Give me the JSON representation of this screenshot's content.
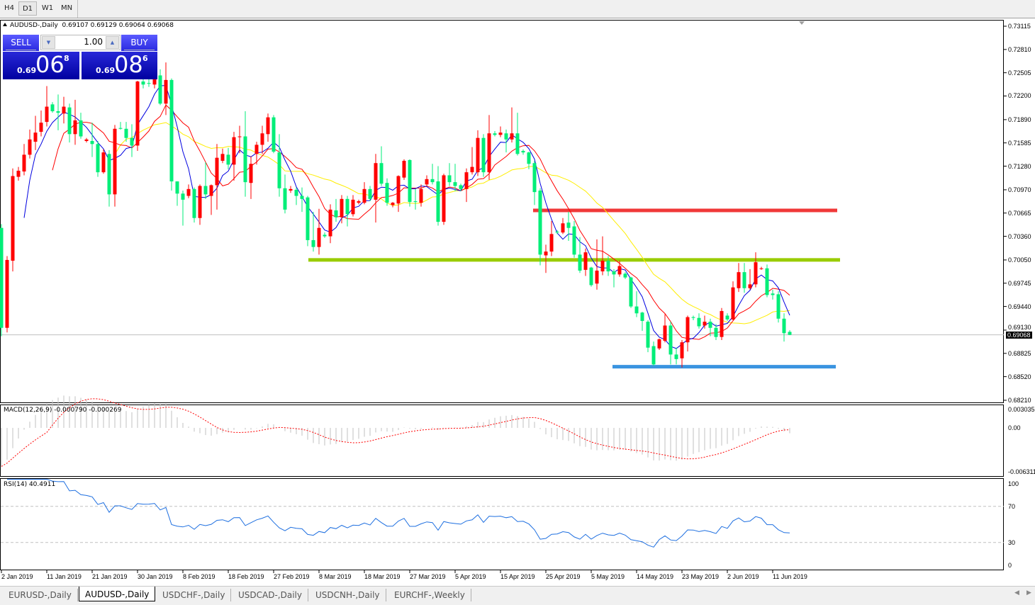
{
  "toolbar": {
    "timeframes": [
      {
        "label": "H4"
      },
      {
        "label": "D1",
        "active": true
      },
      {
        "label": "W1"
      },
      {
        "label": "MN"
      }
    ]
  },
  "header": {
    "symbol": "AUDUSD-,Daily",
    "ohlc": "0.69107 0.69129 0.69064 0.69068"
  },
  "trade_panel": {
    "sell_label": "SELL",
    "buy_label": "BUY",
    "lot": "1.00",
    "sell_price": {
      "prefix": "0.69",
      "big": "06",
      "sup": "8"
    },
    "buy_price": {
      "prefix": "0.69",
      "big": "08",
      "sup": "6"
    }
  },
  "colors": {
    "bull": "#ff0000",
    "bear": "#00ee78",
    "ma_fast": "#0000e0",
    "ma_mid": "#ff0000",
    "ma_slow": "#ffee00",
    "resistance": "#f03838",
    "pivot": "#99cc00",
    "support": "#3a94e0",
    "rsi": "#1e6fe0",
    "macd_hist": "#c0c0c0",
    "macd_signal": "#ff0000"
  },
  "price_axis": {
    "labels": [
      "0.73115",
      "0.72810",
      "0.72505",
      "0.72200",
      "0.71890",
      "0.71585",
      "0.71280",
      "0.70970",
      "0.70665",
      "0.70360",
      "0.70050",
      "0.69745",
      "0.69440",
      "0.69130",
      "0.68825",
      "0.68520",
      "0.68210"
    ],
    "current": "0.69068"
  },
  "horizontal_lines": [
    {
      "name": "resistance",
      "price": 0.707
    },
    {
      "name": "pivot",
      "price": 0.7005
    },
    {
      "name": "support",
      "price": 0.6865
    }
  ],
  "macd": {
    "title": "MACD(12,26,9) -0.000790 -0.000269",
    "axis": [
      "0.003035",
      "0.00",
      "-0.006311"
    ]
  },
  "rsi": {
    "title": "RSI(14) 40.4911",
    "axis": [
      "100",
      "70",
      "30",
      "0"
    ],
    "levels": [
      70,
      30
    ]
  },
  "dates": [
    "2 Jan 2019",
    "11 Jan 2019",
    "21 Jan 2019",
    "30 Jan 2019",
    "8 Feb 2019",
    "18 Feb 2019",
    "27 Feb 2019",
    "8 Mar 2019",
    "18 Mar 2019",
    "27 Mar 2019",
    "5 Apr 2019",
    "15 Apr 2019",
    "25 Apr 2019",
    "5 May 2019",
    "14 May 2019",
    "23 May 2019",
    "2 Jun 2019",
    "11 Jun 2019"
  ],
  "tabs": [
    {
      "label": "EURUSD-,Daily"
    },
    {
      "label": "AUDUSD-,Daily",
      "active": true
    },
    {
      "label": "USDCHF-,Daily"
    },
    {
      "label": "USDCAD-,Daily"
    },
    {
      "label": "USDCNH-,Daily"
    },
    {
      "label": "EURCHF-,Weekly"
    }
  ],
  "chart_data": {
    "type": "candlestick",
    "symbol": "AUDUSD-",
    "timeframe": "Daily",
    "ylim": [
      0.6821,
      0.73115
    ],
    "candle_format": [
      "open",
      "high",
      "low",
      "close"
    ],
    "candles": [
      [
        0.7047,
        0.7052,
        0.6905,
        0.6916
      ],
      [
        0.6916,
        0.701,
        0.691,
        0.7005
      ],
      [
        0.7004,
        0.7125,
        0.699,
        0.7115
      ],
      [
        0.7114,
        0.7127,
        0.7109,
        0.7122
      ],
      [
        0.7121,
        0.7157,
        0.7116,
        0.7143
      ],
      [
        0.7143,
        0.7176,
        0.7138,
        0.7163
      ],
      [
        0.716,
        0.7194,
        0.7149,
        0.7172
      ],
      [
        0.7173,
        0.7201,
        0.7167,
        0.7185
      ],
      [
        0.7186,
        0.7233,
        0.718,
        0.7206
      ],
      [
        0.7209,
        0.7212,
        0.7198,
        0.72
      ],
      [
        0.72,
        0.7222,
        0.7175,
        0.7198
      ],
      [
        0.7197,
        0.7219,
        0.7184,
        0.7206
      ],
      [
        0.7205,
        0.721,
        0.7159,
        0.717
      ],
      [
        0.717,
        0.7215,
        0.7156,
        0.7188
      ],
      [
        0.7188,
        0.7198,
        0.7164,
        0.7167
      ],
      [
        0.7161,
        0.7165,
        0.7159,
        0.7163
      ],
      [
        0.7161,
        0.7185,
        0.714,
        0.7157
      ],
      [
        0.7157,
        0.7161,
        0.7114,
        0.712
      ],
      [
        0.712,
        0.715,
        0.7118,
        0.7146
      ],
      [
        0.7144,
        0.7149,
        0.7075,
        0.7091
      ],
      [
        0.7091,
        0.7182,
        0.7075,
        0.7177
      ],
      [
        0.7178,
        0.7186,
        0.7176,
        0.7177
      ],
      [
        0.7177,
        0.7186,
        0.716,
        0.7165
      ],
      [
        0.7165,
        0.7183,
        0.714,
        0.7155
      ],
      [
        0.7155,
        0.724,
        0.7148,
        0.7239
      ],
      [
        0.7239,
        0.7253,
        0.723,
        0.7235
      ],
      [
        0.7237,
        0.7243,
        0.7232,
        0.7236
      ],
      [
        0.7235,
        0.7262,
        0.723,
        0.7247
      ],
      [
        0.7247,
        0.7255,
        0.7208,
        0.721
      ],
      [
        0.721,
        0.7264,
        0.7195,
        0.7241
      ],
      [
        0.7241,
        0.7243,
        0.7096,
        0.7108
      ],
      [
        0.7108,
        0.7108,
        0.7076,
        0.7092
      ],
      [
        0.7092,
        0.7096,
        0.705,
        0.7084
      ],
      [
        0.7089,
        0.7104,
        0.7086,
        0.7098
      ],
      [
        0.7098,
        0.71,
        0.7054,
        0.706
      ],
      [
        0.706,
        0.7104,
        0.7051,
        0.7102
      ],
      [
        0.7102,
        0.7133,
        0.7085,
        0.7091
      ],
      [
        0.7089,
        0.7104,
        0.7064,
        0.7103
      ],
      [
        0.7103,
        0.7157,
        0.7071,
        0.7139
      ],
      [
        0.7135,
        0.7151,
        0.7132,
        0.7144
      ],
      [
        0.7143,
        0.7152,
        0.7124,
        0.713
      ],
      [
        0.713,
        0.7173,
        0.7109,
        0.7166
      ],
      [
        0.7166,
        0.7181,
        0.7145,
        0.7167
      ],
      [
        0.7167,
        0.72,
        0.7088,
        0.7107
      ],
      [
        0.7106,
        0.7141,
        0.7085,
        0.7131
      ],
      [
        0.7144,
        0.716,
        0.713,
        0.7156
      ],
      [
        0.7156,
        0.7181,
        0.7144,
        0.7171
      ],
      [
        0.717,
        0.7197,
        0.716,
        0.7192
      ],
      [
        0.7192,
        0.7195,
        0.7145,
        0.7147
      ],
      [
        0.7146,
        0.717,
        0.7088,
        0.7099
      ],
      [
        0.7099,
        0.7117,
        0.7066,
        0.7071
      ],
      [
        0.7096,
        0.7102,
        0.7093,
        0.7098
      ],
      [
        0.7097,
        0.71,
        0.7077,
        0.7089
      ],
      [
        0.7089,
        0.71,
        0.7068,
        0.7085
      ],
      [
        0.7087,
        0.7089,
        0.7023,
        0.7031
      ],
      [
        0.7031,
        0.7068,
        0.7016,
        0.7022
      ],
      [
        0.7022,
        0.7072,
        0.7012,
        0.7047
      ],
      [
        0.7038,
        0.7041,
        0.7034,
        0.7036
      ],
      [
        0.7036,
        0.7078,
        0.7027,
        0.7071
      ],
      [
        0.707,
        0.7085,
        0.7055,
        0.7061
      ],
      [
        0.7061,
        0.709,
        0.7053,
        0.7085
      ],
      [
        0.7085,
        0.7089,
        0.7049,
        0.7065
      ],
      [
        0.7065,
        0.709,
        0.7062,
        0.7084
      ],
      [
        0.708,
        0.7084,
        0.7078,
        0.7082
      ],
      [
        0.708,
        0.7107,
        0.7078,
        0.7098
      ],
      [
        0.7098,
        0.7102,
        0.7082,
        0.7085
      ],
      [
        0.7084,
        0.7144,
        0.7054,
        0.7132
      ],
      [
        0.7132,
        0.7154,
        0.7102,
        0.7105
      ],
      [
        0.7106,
        0.7112,
        0.7076,
        0.708
      ],
      [
        0.7077,
        0.7081,
        0.7074,
        0.708
      ],
      [
        0.7079,
        0.7116,
        0.7068,
        0.7115
      ],
      [
        0.7113,
        0.7137,
        0.711,
        0.7135
      ],
      [
        0.7136,
        0.7137,
        0.7075,
        0.7081
      ],
      [
        0.7082,
        0.7098,
        0.7071,
        0.7081
      ],
      [
        0.708,
        0.7104,
        0.7075,
        0.7098
      ],
      [
        0.7104,
        0.7116,
        0.7102,
        0.7111
      ],
      [
        0.7111,
        0.7131,
        0.7104,
        0.7107
      ],
      [
        0.7108,
        0.7128,
        0.705,
        0.7055
      ],
      [
        0.7055,
        0.7118,
        0.7051,
        0.7116
      ],
      [
        0.7116,
        0.7132,
        0.7102,
        0.7107
      ],
      [
        0.7107,
        0.7131,
        0.7095,
        0.7102
      ],
      [
        0.7103,
        0.7105,
        0.7095,
        0.7098
      ],
      [
        0.7098,
        0.7125,
        0.7081,
        0.712
      ],
      [
        0.712,
        0.7153,
        0.7117,
        0.7127
      ],
      [
        0.712,
        0.7175,
        0.7115,
        0.7165
      ],
      [
        0.7165,
        0.717,
        0.7114,
        0.712
      ],
      [
        0.712,
        0.7195,
        0.711,
        0.7171
      ],
      [
        0.7171,
        0.7174,
        0.7167,
        0.7169
      ],
      [
        0.7169,
        0.718,
        0.7166,
        0.7172
      ],
      [
        0.7171,
        0.7176,
        0.7146,
        0.7163
      ],
      [
        0.7163,
        0.7205,
        0.7159,
        0.7171
      ],
      [
        0.7171,
        0.7198,
        0.7142,
        0.7144
      ],
      [
        0.7148,
        0.715,
        0.7143,
        0.7146
      ],
      [
        0.7146,
        0.7147,
        0.7124,
        0.7131
      ],
      [
        0.7132,
        0.7135,
        0.7077,
        0.7094
      ],
      [
        0.7096,
        0.7099,
        0.6998,
        0.7012
      ],
      [
        0.7011,
        0.7025,
        0.6988,
        0.7016
      ],
      [
        0.7016,
        0.7056,
        0.701,
        0.7039
      ],
      [
        0.7042,
        0.7044,
        0.7039,
        0.7041
      ],
      [
        0.7041,
        0.706,
        0.7039,
        0.7053
      ],
      [
        0.7054,
        0.7068,
        0.703,
        0.7047
      ],
      [
        0.7049,
        0.7056,
        0.7008,
        0.7012
      ],
      [
        0.7012,
        0.7035,
        0.6988,
        0.6991
      ],
      [
        0.6992,
        0.702,
        0.6984,
        0.7015
      ],
      [
        0.6995,
        0.6996,
        0.697,
        0.6972
      ],
      [
        0.6974,
        0.7032,
        0.6966,
        0.6991
      ],
      [
        0.699,
        0.7036,
        0.6985,
        0.7004
      ],
      [
        0.7004,
        0.701,
        0.6984,
        0.699
      ],
      [
        0.699,
        0.6993,
        0.6969,
        0.6986
      ],
      [
        0.6986,
        0.7004,
        0.6983,
        0.6997
      ],
      [
        0.6987,
        0.6989,
        0.698,
        0.6982
      ],
      [
        0.6982,
        0.6983,
        0.6942,
        0.6944
      ],
      [
        0.6944,
        0.6964,
        0.693,
        0.6935
      ],
      [
        0.6936,
        0.6937,
        0.6912,
        0.6925
      ],
      [
        0.6924,
        0.6926,
        0.6884,
        0.689
      ],
      [
        0.6892,
        0.6898,
        0.6866,
        0.6868
      ],
      [
        0.6889,
        0.6902,
        0.6887,
        0.6901
      ],
      [
        0.6899,
        0.6934,
        0.6897,
        0.6919
      ],
      [
        0.6919,
        0.6924,
        0.6868,
        0.6881
      ],
      [
        0.6881,
        0.689,
        0.6868,
        0.6875
      ],
      [
        0.6876,
        0.69,
        0.6864,
        0.6897
      ],
      [
        0.6897,
        0.6932,
        0.6885,
        0.693
      ],
      [
        0.693,
        0.6932,
        0.6926,
        0.6929
      ],
      [
        0.6929,
        0.6935,
        0.6915,
        0.6918
      ],
      [
        0.6919,
        0.6932,
        0.6915,
        0.6924
      ],
      [
        0.6924,
        0.6928,
        0.6905,
        0.6916
      ],
      [
        0.6916,
        0.6921,
        0.69,
        0.6904
      ],
      [
        0.6904,
        0.6942,
        0.69,
        0.6938
      ],
      [
        0.6932,
        0.6935,
        0.6925,
        0.6927
      ],
      [
        0.6927,
        0.6977,
        0.6926,
        0.6969
      ],
      [
        0.6968,
        0.7001,
        0.6963,
        0.6989
      ],
      [
        0.6989,
        0.7001,
        0.6962,
        0.6968
      ],
      [
        0.6968,
        0.6993,
        0.6966,
        0.6973
      ],
      [
        0.6973,
        0.7015,
        0.6969,
        0.7002
      ],
      [
        0.6994,
        0.6996,
        0.6992,
        0.6994
      ],
      [
        0.6994,
        0.6999,
        0.6956,
        0.6959
      ],
      [
        0.6961,
        0.6966,
        0.6953,
        0.6959
      ],
      [
        0.696,
        0.6964,
        0.6923,
        0.6928
      ],
      [
        0.6928,
        0.6935,
        0.6898,
        0.6909
      ],
      [
        0.69107,
        0.69129,
        0.69064,
        0.69068
      ]
    ]
  }
}
